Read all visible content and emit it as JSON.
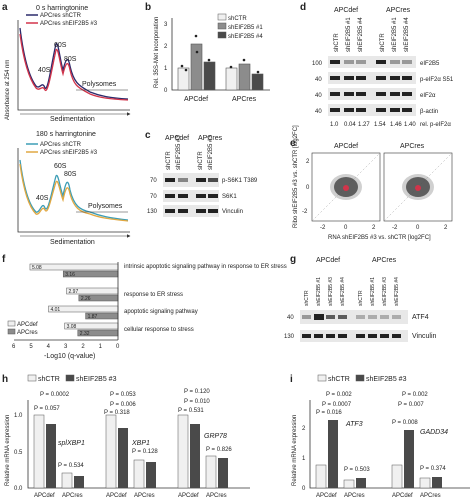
{
  "panels": {
    "a": {
      "letter": "a",
      "title_top": "0 s harringtonine",
      "title_bottom": "180 s harringtonine",
      "legend": [
        "APCres shCTR",
        "APCres shEIF2B5 #3"
      ],
      "ylabel": "Absorbance at 254 nm",
      "xlabel": "Sedimentation",
      "peaks": [
        "40S",
        "60S",
        "80S"
      ],
      "polysomes": "Polysomes"
    },
    "b": {
      "letter": "b",
      "ylabel": "Rel. 35S-Met incorporation",
      "legend": [
        "shCTR",
        "shEIF2B5 #1",
        "shEIF2B5 #4"
      ],
      "groups": [
        "APCdef",
        "APCres"
      ],
      "yticks": [
        "0",
        "1",
        "2",
        "3"
      ]
    },
    "c": {
      "letter": "c",
      "groups": [
        "APCdef",
        "APCres"
      ],
      "lanes": [
        "shCTR",
        "shEIF2B5 #3",
        "shCTR",
        "shEIF2B5 #3"
      ],
      "blots": [
        "p-S6K1 T389",
        "S6K1",
        "Vinculin"
      ],
      "mw": [
        "70",
        "70",
        "130"
      ]
    },
    "d": {
      "letter": "d",
      "groups": [
        "APCdef",
        "APCres"
      ],
      "lanes": [
        "shCTR",
        "shEIF2B5 #1",
        "shEIF2B5 #4",
        "shCTR",
        "shEIF2B5 #1",
        "shEIF2B5 #4"
      ],
      "blots": [
        "eIF2B5",
        "p-eIF2α S51",
        "eIF2α",
        "β-actin"
      ],
      "mw": [
        "100",
        "40",
        "40",
        "40"
      ],
      "ratios": [
        "1.0",
        "0.04",
        "1.27",
        "1.54",
        "1.46",
        "1.40"
      ],
      "ratio_label": "rel. p-eIF2α"
    },
    "e": {
      "letter": "e",
      "groups": [
        "APCdef",
        "APCres"
      ],
      "ylabel": "Ribo shEIF2B5 #3 vs. shCTR [log2FC]",
      "xlabel": "RNA shEIF2B5 #3 vs. shCTR [log2FC]",
      "ticks": [
        "-2",
        "0",
        "2"
      ]
    },
    "f": {
      "letter": "f",
      "xlabel": "-Log10 (q-value)",
      "xticks": [
        "6",
        "5",
        "4",
        "3",
        "2",
        "1",
        "0"
      ],
      "legend": [
        "APCdef",
        "APCres"
      ],
      "terms": [
        "intrinsic apoptotic signaling pathway in response to ER stress",
        "response to ER stress",
        "apoptotic signaling pathway",
        "cellular response to stress"
      ],
      "values_def": [
        5.08,
        2.97,
        4.01,
        3.08
      ],
      "values_res": [
        3.16,
        2.26,
        1.87,
        2.32
      ]
    },
    "g": {
      "letter": "g",
      "groups": [
        "APCdef",
        "APCres"
      ],
      "lanes": [
        "shCTR",
        "shEIF2B5 #1",
        "shEIF2B5 #3",
        "shEIF2B5 #4",
        "shCTR",
        "shEIF2B5 #1",
        "shEIF2B5 #3",
        "shEIF2B5 #4"
      ],
      "blots": [
        "ATF4",
        "Vinculin"
      ],
      "mw": [
        "40",
        "130"
      ]
    },
    "h": {
      "letter": "h",
      "legend": [
        "shCTR",
        "shEIF2B5 #3"
      ],
      "ylabel": "Relative mRNA expression",
      "genes": [
        "splXBP1",
        "XBP1",
        "GRP78"
      ],
      "yticks": [
        "0.0",
        "0.5",
        "1.0"
      ],
      "pvals": [
        "P = 0.0002",
        "P = 0.057",
        "P = 0.534",
        "P = 0.053",
        "P = 0.006",
        "P = 0.318",
        "P = 0.128",
        "P = 0.120",
        "P = 0.010",
        "P = 0.531",
        "P = 0.826"
      ],
      "groups": [
        "APCdef",
        "APCres"
      ]
    },
    "i": {
      "letter": "i",
      "legend": [
        "shCTR",
        "shEIF2B5 #3"
      ],
      "ylabel": "Relative mRNA expression",
      "genes": [
        "ATF3",
        "GADD34"
      ],
      "yticks": [
        "0",
        "1",
        "2"
      ],
      "pvals": [
        "P = 0.002",
        "P = 0.0007",
        "P = 0.016",
        "P = 0.503",
        "P = 0.002",
        "P = 0.007",
        "P = 0.008",
        "P = 0.374"
      ],
      "groups": [
        "APCdef",
        "APCres"
      ]
    }
  },
  "colors": {
    "navy": "#2b2a6b",
    "red": "#d2344a",
    "teal": "#3c9db5",
    "orange": "#e1a842",
    "lightgray": "#cccccc",
    "midgray": "#8c8c8c",
    "darkgray": "#4a4a4a"
  }
}
